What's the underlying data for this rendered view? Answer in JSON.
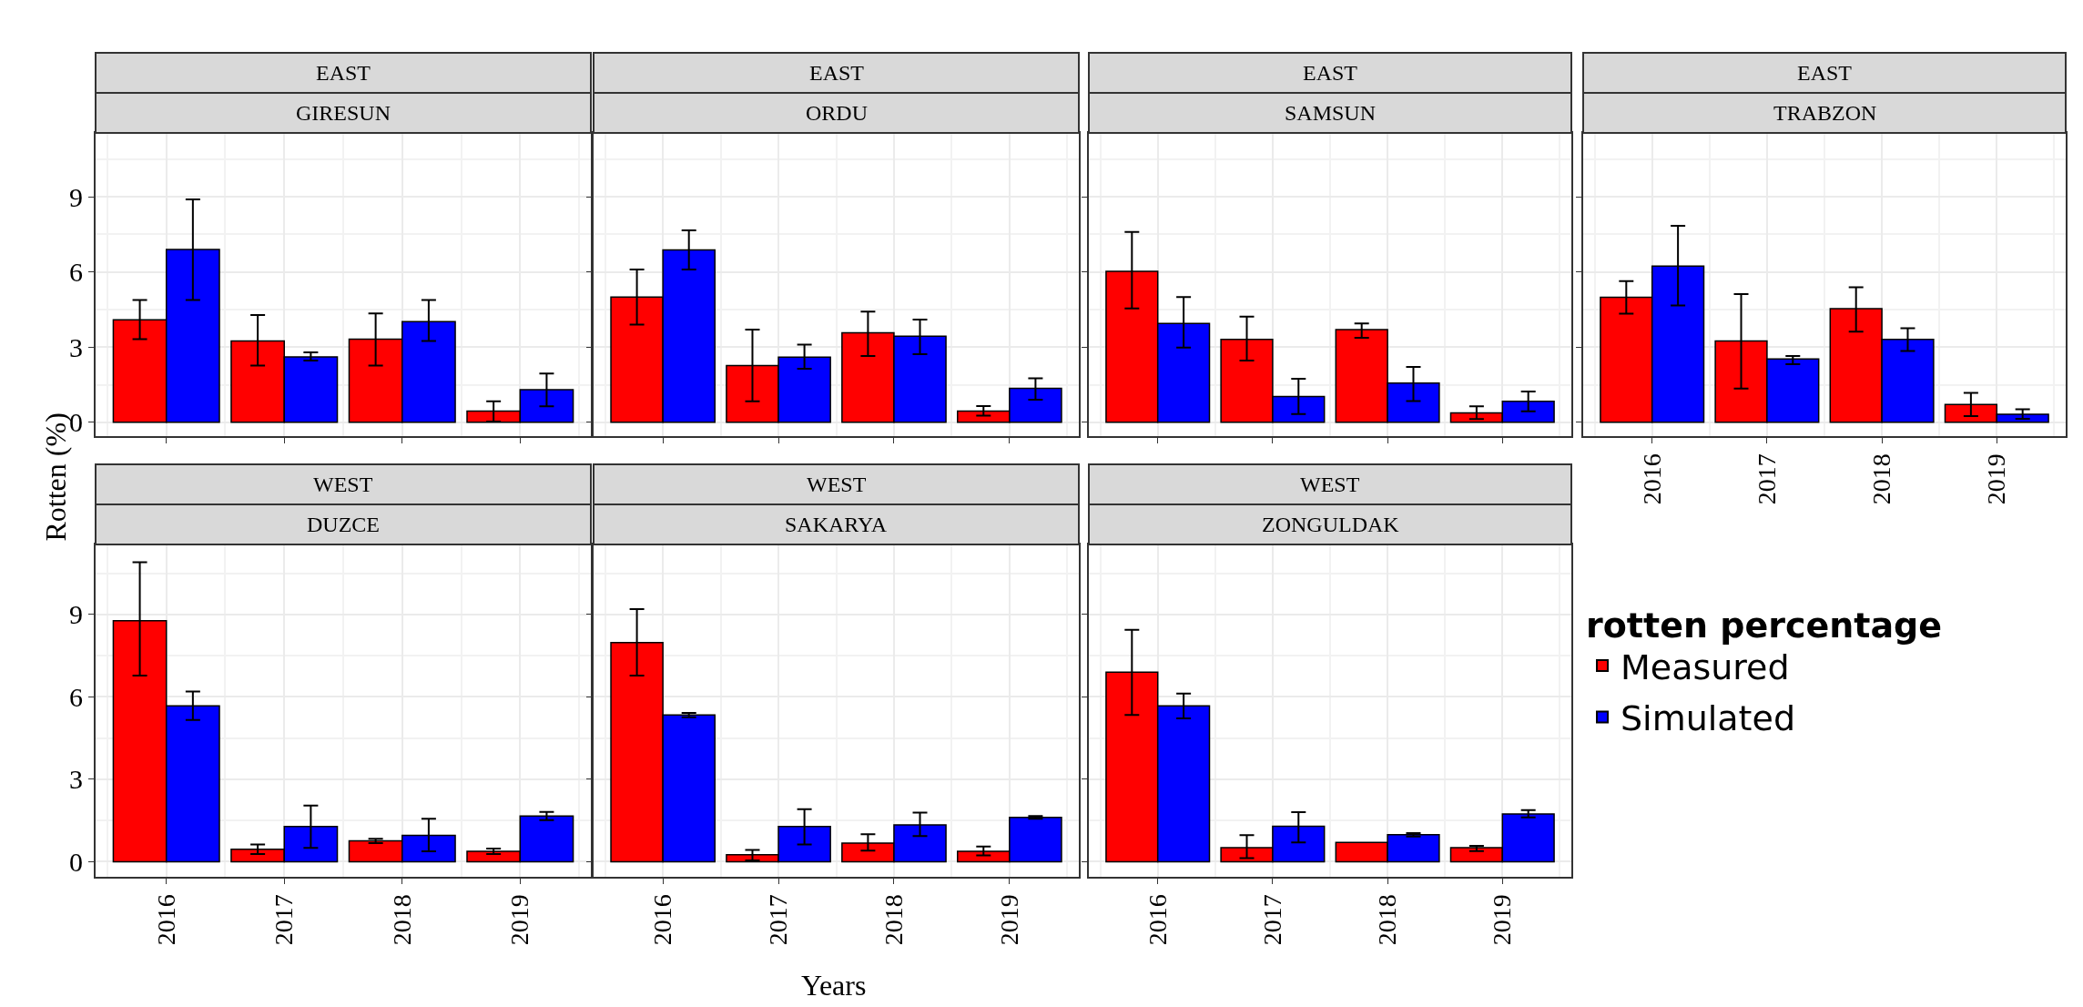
{
  "chart_data": [
    {
      "type": "bar",
      "title": "EAST",
      "subtitle": "GIRESUN",
      "ylabel": "Rotten (%)",
      "categories": [
        "2016",
        "2017",
        "2018",
        "2019"
      ],
      "ylim": [
        -0.55,
        11.55
      ],
      "yticks": [
        0,
        3,
        6,
        9
      ],
      "grid": true,
      "tick_labels": "y",
      "series": [
        {
          "color": "#ff0000",
          "values": [
            4.09,
            3.25,
            3.32,
            0.45
          ],
          "errors": [
            [
              3.32,
              4.88
            ],
            [
              2.27,
              4.28
            ],
            [
              2.27,
              4.35
            ],
            [
              0.03,
              0.84
            ]
          ]
        },
        {
          "color": "#0000ff",
          "values": [
            6.9,
            2.61,
            4.02,
            1.3
          ],
          "errors": [
            [
              4.88,
              8.9
            ],
            [
              2.47,
              2.79
            ],
            [
              3.25,
              4.88
            ],
            [
              0.64,
              1.95
            ]
          ]
        }
      ]
    },
    {
      "type": "bar",
      "title": "EAST",
      "subtitle": "ORDU",
      "categories": [
        "2016",
        "2017",
        "2018",
        "2019"
      ],
      "ylim": [
        -0.55,
        11.55
      ],
      "yticks": [
        0,
        3,
        6,
        9
      ],
      "grid": true,
      "tick_labels": false,
      "series": [
        {
          "color": "#ff0000",
          "values": [
            5.0,
            2.27,
            3.57,
            0.45
          ],
          "errors": [
            [
              3.9,
              6.1
            ],
            [
              0.84,
              3.7
            ],
            [
              2.65,
              4.42
            ],
            [
              0.27,
              0.65
            ]
          ]
        },
        {
          "color": "#0000ff",
          "values": [
            6.88,
            2.6,
            3.44,
            1.36
          ],
          "errors": [
            [
              6.1,
              7.66
            ],
            [
              2.14,
              3.1
            ],
            [
              2.72,
              4.1
            ],
            [
              0.9,
              1.76
            ]
          ]
        }
      ]
    },
    {
      "type": "bar",
      "title": "EAST",
      "subtitle": "SAMSUN",
      "categories": [
        "2016",
        "2017",
        "2018",
        "2019"
      ],
      "ylim": [
        -0.55,
        11.55
      ],
      "yticks": [
        0,
        3,
        6,
        9
      ],
      "grid": true,
      "tick_labels": false,
      "series": [
        {
          "color": "#ff0000",
          "values": [
            6.03,
            3.31,
            3.7,
            0.38
          ],
          "errors": [
            [
              4.55,
              7.6
            ],
            [
              2.47,
              4.22
            ],
            [
              3.37,
              3.95
            ],
            [
              0.13,
              0.64
            ]
          ]
        },
        {
          "color": "#0000ff",
          "values": [
            3.95,
            1.03,
            1.57,
            0.84
          ],
          "errors": [
            [
              2.98,
              5.0
            ],
            [
              0.33,
              1.74
            ],
            [
              0.85,
              2.21
            ],
            [
              0.44,
              1.23
            ]
          ]
        }
      ]
    },
    {
      "type": "bar",
      "title": "EAST",
      "subtitle": "TRABZON",
      "categories": [
        "2016",
        "2017",
        "2018",
        "2019"
      ],
      "ylim": [
        -0.55,
        11.55
      ],
      "yticks": [
        0,
        3,
        6,
        9
      ],
      "grid": true,
      "tick_labels": "x",
      "series": [
        {
          "color": "#ff0000",
          "values": [
            4.99,
            3.25,
            4.54,
            0.71
          ],
          "errors": [
            [
              4.34,
              5.64
            ],
            [
              1.35,
              5.12
            ],
            [
              3.62,
              5.39
            ],
            [
              0.25,
              1.18
            ]
          ]
        },
        {
          "color": "#0000ff",
          "values": [
            6.24,
            2.53,
            3.31,
            0.32
          ],
          "errors": [
            [
              4.66,
              7.84
            ],
            [
              2.32,
              2.65
            ],
            [
              2.85,
              3.76
            ],
            [
              0.14,
              0.52
            ]
          ]
        }
      ]
    },
    {
      "type": "bar",
      "title": "WEST",
      "subtitle": "DUZCE",
      "categories": [
        "2016",
        "2017",
        "2018",
        "2019"
      ],
      "ylim": [
        -0.55,
        11.55
      ],
      "yticks": [
        0,
        3,
        6,
        9
      ],
      "grid": true,
      "series": [
        {
          "color": "#ff0000",
          "values": [
            8.77,
            0.45,
            0.76,
            0.38
          ],
          "errors": [
            [
              6.78,
              10.9
            ],
            [
              0.28,
              0.63
            ],
            [
              0.68,
              0.83
            ],
            [
              0.28,
              0.48
            ]
          ]
        },
        {
          "color": "#0000ff",
          "values": [
            5.67,
            1.28,
            0.96,
            1.66
          ],
          "errors": [
            [
              5.16,
              6.2
            ],
            [
              0.5,
              2.04
            ],
            [
              0.38,
              1.56
            ],
            [
              1.51,
              1.81
            ]
          ]
        }
      ]
    },
    {
      "type": "bar",
      "title": "WEST",
      "subtitle": "SAKARYA",
      "xlabel": "Years",
      "categories": [
        "2016",
        "2017",
        "2018",
        "2019"
      ],
      "ylim": [
        -0.55,
        11.55
      ],
      "yticks": [
        0,
        3,
        6,
        9
      ],
      "grid": true,
      "tick_labels": "x",
      "series": [
        {
          "color": "#ff0000",
          "values": [
            7.98,
            0.25,
            0.68,
            0.38
          ],
          "errors": [
            [
              6.78,
              9.2
            ],
            [
              0.05,
              0.43
            ],
            [
              0.4,
              1.0
            ],
            [
              0.23,
              0.55
            ]
          ]
        },
        {
          "color": "#0000ff",
          "values": [
            5.34,
            1.28,
            1.34,
            1.61
          ],
          "errors": [
            [
              5.26,
              5.42
            ],
            [
              0.63,
              1.91
            ],
            [
              0.93,
              1.79
            ],
            [
              1.56,
              1.66
            ]
          ]
        }
      ]
    },
    {
      "type": "bar",
      "title": "WEST",
      "subtitle": "ZONGULDAK",
      "legend_title": "rotten percentage",
      "legend": "right",
      "categories": [
        "2016",
        "2017",
        "2018",
        "2019"
      ],
      "ylim": [
        -0.55,
        11.55
      ],
      "yticks": [
        0,
        3,
        6,
        9
      ],
      "grid": true,
      "tick_labels": "x",
      "series": [
        {
          "name": "Measured",
          "color": "#ff0000",
          "values": [
            6.9,
            0.51,
            0.7,
            0.51
          ],
          "errors": [
            [
              5.34,
              8.44
            ],
            [
              0.13,
              0.97
            ],
            null,
            [
              0.39,
              0.58
            ]
          ]
        },
        {
          "name": "Simulated",
          "color": "#0000ff",
          "values": [
            5.67,
            1.29,
            0.98,
            1.74
          ],
          "errors": [
            [
              5.22,
              6.12
            ],
            [
              0.7,
              1.8
            ],
            [
              0.92,
              1.04
            ],
            [
              1.61,
              1.88
            ]
          ]
        }
      ]
    }
  ]
}
